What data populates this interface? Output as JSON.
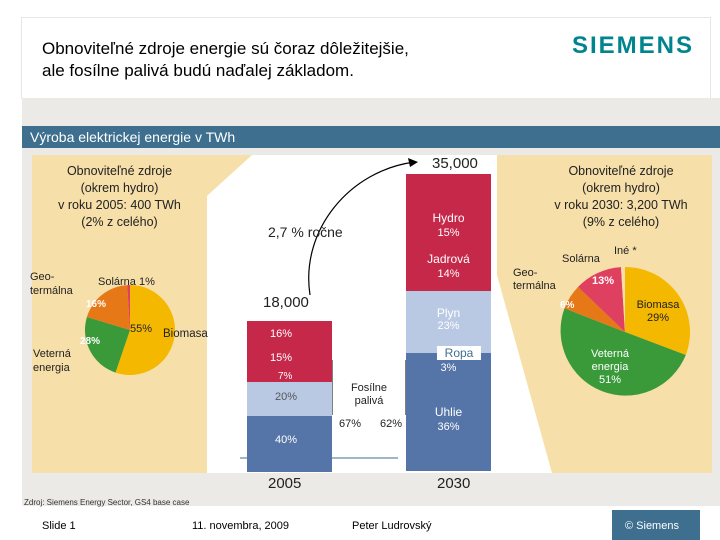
{
  "header": {
    "title_line1": "Obnoviteľné zdroje energie sú čoraz dôležitejšie,",
    "title_line2": "ale fosílne palivá budú naďalej základom.",
    "logo": "SIEMENS"
  },
  "banner": {
    "text": "Výroba elektrickej energie v TWh"
  },
  "left_box": {
    "line1": "Obnoviteľné zdroje",
    "line2": "(okrem hydro)",
    "line3": "v roku 2005: 400 TWh",
    "line4": "(2% z celého)"
  },
  "right_box": {
    "line1": "Obnoviteľné zdroje",
    "line2": "(okrem hydro)",
    "line3": "v roku 2030: 3,200 TWh",
    "line4": "(9% z celého)"
  },
  "center": {
    "total_2030": "35,000",
    "growth": "2,7 % ročne",
    "total_2005": "18,000",
    "fossil_label_1": "Fosílne",
    "fossil_label_2": "palivá",
    "fossil_2005": "67%",
    "fossil_2030": "62%",
    "year_2005": "2005",
    "year_2030": "2030"
  },
  "chart_data": [
    {
      "type": "pie",
      "title": "Renewables 2005",
      "slices": [
        {
          "label": "Biomasa",
          "value": 55,
          "text": "55%"
        },
        {
          "label": "Veterná energia",
          "value": 28,
          "text": "28%"
        },
        {
          "label": "Geo-termálna",
          "value": 16,
          "text": "16%"
        },
        {
          "label": "Solárna",
          "value": 1,
          "text": "1%"
        }
      ],
      "labels": {
        "geo1": "Geo-",
        "geo2": "termálna",
        "solar": "Solárna 1%",
        "wind1": "Veterná",
        "wind2": "energia",
        "biomass": "Biomasa"
      }
    },
    {
      "type": "bar",
      "title": "2005",
      "total": 18000,
      "segments": [
        {
          "label": "Uhlie",
          "value": 40,
          "text": "40%"
        },
        {
          "label": "Plyn",
          "value": 20,
          "text": "20%"
        },
        {
          "label": "Ropa",
          "value": 7,
          "text": "7%"
        },
        {
          "label": "Jadrová",
          "value": 15,
          "text": "15%"
        },
        {
          "label": "Hydro",
          "value": 16,
          "text": "16%"
        }
      ]
    },
    {
      "type": "bar",
      "title": "2030",
      "total": 35000,
      "segments": [
        {
          "label": "Uhlie",
          "value": 36,
          "text": "36%"
        },
        {
          "label": "Ropa",
          "value": 3,
          "text": "3%"
        },
        {
          "label": "Plyn",
          "value": 23,
          "text": "23%"
        },
        {
          "label": "Jadrová",
          "value": 14,
          "text": "14%"
        },
        {
          "label": "Hydro",
          "value": 15,
          "text": "15%"
        }
      ]
    },
    {
      "type": "pie",
      "title": "Renewables 2030",
      "slices": [
        {
          "label": "Veterná energia",
          "value": 51,
          "text": "51%"
        },
        {
          "label": "Biomasa",
          "value": 29,
          "text": "29%"
        },
        {
          "label": "Solárna",
          "value": 13,
          "text": "13%"
        },
        {
          "label": "Geo-termálna",
          "value": 6,
          "text": "6%"
        },
        {
          "label": "Iné",
          "value": 1,
          "text": ""
        }
      ],
      "labels": {
        "solar": "Solárna",
        "other": "Iné *",
        "geo1": "Geo-",
        "geo2": "termálna",
        "biomass": "Biomasa",
        "wind1": "Veterná",
        "wind2": "energia"
      }
    }
  ],
  "footer": {
    "source": "Zdroj: Siemens Energy Sector, GS4 base case",
    "slide": "Slide 1",
    "date": "11. novembra, 2009",
    "author": "Peter Ludrovský",
    "copyright": "© Siemens"
  }
}
